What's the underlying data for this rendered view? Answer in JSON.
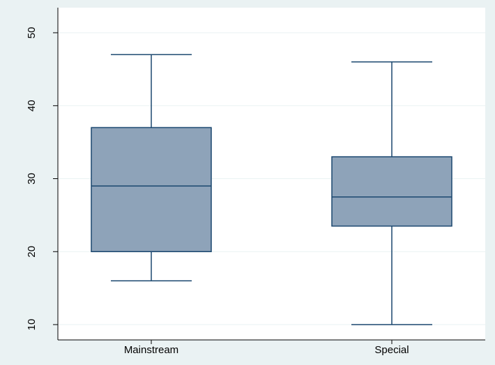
{
  "chart_data": {
    "type": "boxplot",
    "categories": [
      "Mainstream",
      "Special"
    ],
    "boxes": [
      {
        "category": "Mainstream",
        "min": 16,
        "q1": 20,
        "median": 29,
        "q3": 37,
        "max": 47
      },
      {
        "category": "Special",
        "min": 10,
        "q1": 23.5,
        "median": 27.5,
        "q3": 33,
        "max": 46
      }
    ],
    "yticks": [
      10,
      20,
      30,
      40,
      50
    ],
    "ylim": [
      10,
      50
    ],
    "grid": true,
    "colors": {
      "background": "#eaf2f3",
      "plot_area": "#ffffff",
      "box_fill": "#8ea3b9",
      "box_stroke": "#1a476f",
      "grid": "#eaf2f3"
    }
  }
}
